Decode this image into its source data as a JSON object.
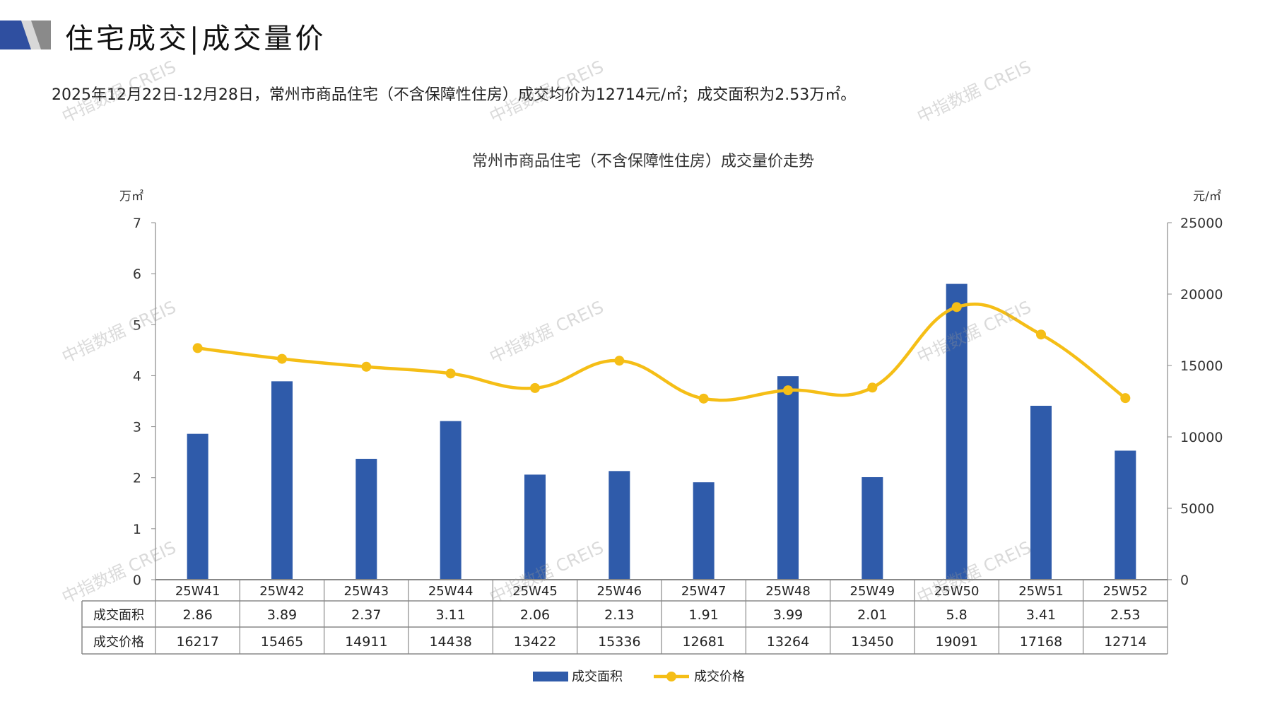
{
  "header": {
    "title": "住宅成交|成交量价",
    "summary": "2025年12月22日-12月28日，常州市商品住宅（不含保障性住房）成交均价为12714元/㎡；成交面积为2.53万㎡。"
  },
  "watermark": "中指数据 CREIS",
  "colors": {
    "bar": "#2F5BAA",
    "line": "#F5BE16",
    "logo_blue": "#2F4FA0",
    "logo_gray": "#8A8A8A"
  },
  "chart_data": {
    "type": "bar+line",
    "title": "常州市商品住宅（不含保障性住房）成交量价走势",
    "ylabel_left": "万㎡",
    "ylabel_right": "元/㎡",
    "ylim_left": [
      0,
      7
    ],
    "yticks_left": [
      "0",
      "1",
      "2",
      "3",
      "4",
      "5",
      "6",
      "7"
    ],
    "ylim_right": [
      0,
      25000
    ],
    "yticks_right": [
      "0",
      "5000",
      "10000",
      "15000",
      "20000",
      "25000"
    ],
    "categories": [
      "25W41",
      "25W42",
      "25W43",
      "25W44",
      "25W45",
      "25W46",
      "25W47",
      "25W48",
      "25W49",
      "25W50",
      "25W51",
      "25W52"
    ],
    "series": [
      {
        "name": "成交面积",
        "type": "bar",
        "axis": "left",
        "values": [
          2.86,
          3.89,
          2.37,
          3.11,
          2.06,
          2.13,
          1.91,
          3.99,
          2.01,
          5.8,
          3.41,
          2.53
        ],
        "labels": [
          "2.86",
          "3.89",
          "2.37",
          "3.11",
          "2.06",
          "2.13",
          "1.91",
          "3.99",
          "2.01",
          "5.8",
          "3.41",
          "2.53"
        ]
      },
      {
        "name": "成交价格",
        "type": "line",
        "axis": "right",
        "values": [
          16217,
          15465,
          14911,
          14438,
          13422,
          15336,
          12681,
          13264,
          13450,
          19091,
          17168,
          12714
        ],
        "labels": [
          "16217",
          "15465",
          "14911",
          "14438",
          "13422",
          "15336",
          "12681",
          "13264",
          "13450",
          "19091",
          "17168",
          "12714"
        ]
      }
    ],
    "legend": "bottom",
    "grid": false
  }
}
